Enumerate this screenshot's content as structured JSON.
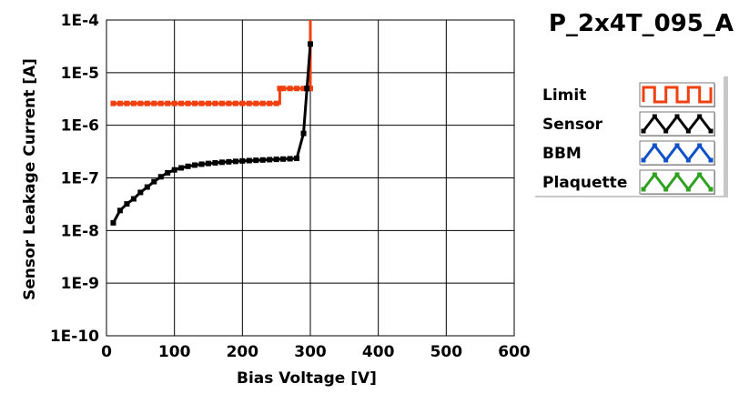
{
  "chart_data": {
    "type": "line",
    "title": "P_2x4T_095_A",
    "xlabel": "Bias Voltage [V]",
    "ylabel": "Sensor Leakage Current [A]",
    "xlim": [
      0,
      600
    ],
    "ylim": [
      1e-10,
      0.0001
    ],
    "yscale": "log",
    "grid": true,
    "legend_position": "right",
    "x_ticks": [
      "0",
      "100",
      "200",
      "300",
      "400",
      "500",
      "600"
    ],
    "y_ticks": [
      "1E-4",
      "1E-5",
      "1E-6",
      "1E-7",
      "1E-8",
      "1E-9",
      "1E-10"
    ],
    "series": [
      {
        "name": "Limit",
        "color": "#f04010",
        "step": true,
        "x": [
          10,
          20,
          30,
          40,
          50,
          60,
          70,
          80,
          90,
          100,
          110,
          120,
          130,
          140,
          150,
          160,
          170,
          180,
          190,
          200,
          210,
          220,
          230,
          240,
          250,
          255,
          260,
          270,
          280,
          290,
          295,
          300,
          300
        ],
        "y": [
          2.6e-06,
          2.6e-06,
          2.6e-06,
          2.6e-06,
          2.6e-06,
          2.6e-06,
          2.6e-06,
          2.6e-06,
          2.6e-06,
          2.6e-06,
          2.6e-06,
          2.6e-06,
          2.6e-06,
          2.6e-06,
          2.6e-06,
          2.6e-06,
          2.6e-06,
          2.6e-06,
          2.6e-06,
          2.6e-06,
          2.6e-06,
          2.6e-06,
          2.6e-06,
          2.6e-06,
          2.6e-06,
          5e-06,
          5e-06,
          5e-06,
          5e-06,
          5e-06,
          5e-06,
          5e-06,
          0.0001
        ]
      },
      {
        "name": "Sensor",
        "color": "#000000",
        "step": false,
        "x": [
          10,
          20,
          30,
          40,
          50,
          60,
          70,
          80,
          90,
          100,
          110,
          120,
          130,
          140,
          150,
          160,
          170,
          180,
          190,
          200,
          210,
          220,
          230,
          240,
          250,
          260,
          270,
          280,
          290,
          295,
          300
        ],
        "y": [
          1.4e-08,
          2.4e-08,
          3.2e-08,
          4e-08,
          5.3e-08,
          6.7e-08,
          8.5e-08,
          1.05e-07,
          1.25e-07,
          1.42e-07,
          1.55e-07,
          1.66e-07,
          1.75e-07,
          1.82e-07,
          1.88e-07,
          1.93e-07,
          1.98e-07,
          2.02e-07,
          2.06e-07,
          2.1e-07,
          2.13e-07,
          2.16e-07,
          2.19e-07,
          2.22e-07,
          2.25e-07,
          2.28e-07,
          2.31e-07,
          2.35e-07,
          7e-07,
          5e-06,
          3.5e-05
        ]
      },
      {
        "name": "BBM",
        "color": "#1050c8",
        "x": [],
        "y": []
      },
      {
        "name": "Plaquette",
        "color": "#30a020",
        "x": [],
        "y": []
      }
    ]
  }
}
